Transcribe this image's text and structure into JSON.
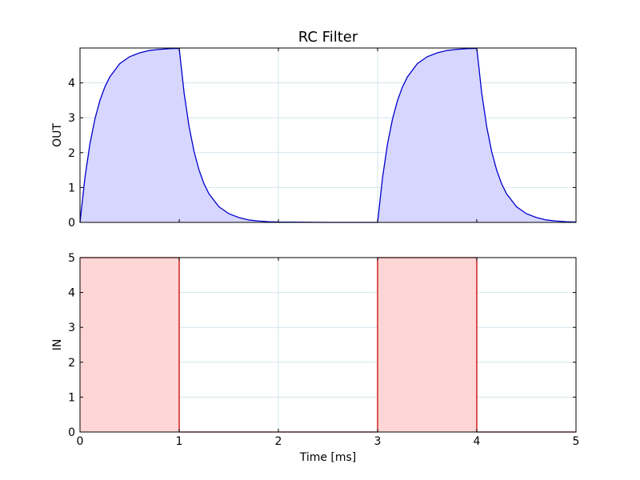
{
  "colors": {
    "out_line": "#0000cc",
    "out_fill": "#d6d6ff",
    "in_line": "#cc0000",
    "in_fill": "#ffd6d6",
    "grid": "#d4e6ee",
    "axes": "#000000"
  },
  "chart_data": [
    {
      "type": "area",
      "title": "RC Filter",
      "xlabel": "",
      "ylabel": "OUT",
      "xlim": [
        0,
        5
      ],
      "ylim": [
        0,
        5
      ],
      "grid": true,
      "xticks": [],
      "yticks": [
        "0",
        "1",
        "2",
        "3",
        "4"
      ],
      "series": [
        {
          "x": [
            0,
            0.05,
            0.1,
            0.15,
            0.2,
            0.25,
            0.3,
            0.4,
            0.5,
            0.6,
            0.7,
            0.8,
            0.9,
            1.0,
            1.05,
            1.1,
            1.15,
            1.2,
            1.25,
            1.3,
            1.4,
            1.5,
            1.6,
            1.7,
            1.8,
            1.9,
            2.0,
            2.5,
            3.0,
            3.05,
            3.1,
            3.15,
            3.2,
            3.25,
            3.3,
            3.4,
            3.5,
            3.6,
            3.7,
            3.8,
            3.9,
            4.0,
            4.05,
            4.1,
            4.15,
            4.2,
            4.25,
            4.3,
            4.4,
            4.5,
            4.6,
            4.7,
            4.8,
            4.9,
            5.0
          ],
          "y": [
            0,
            1.29,
            2.25,
            2.96,
            3.49,
            3.88,
            4.17,
            4.55,
            4.75,
            4.86,
            4.93,
            4.96,
            4.98,
            4.99,
            3.7,
            2.74,
            2.03,
            1.5,
            1.11,
            0.82,
            0.45,
            0.25,
            0.14,
            0.07,
            0.04,
            0.02,
            0.01,
            0.0,
            0.0,
            1.29,
            2.25,
            2.96,
            3.49,
            3.88,
            4.17,
            4.55,
            4.75,
            4.86,
            4.93,
            4.96,
            4.98,
            4.99,
            3.7,
            2.74,
            2.03,
            1.5,
            1.11,
            0.82,
            0.45,
            0.25,
            0.14,
            0.07,
            0.04,
            0.02,
            0.01
          ]
        }
      ]
    },
    {
      "type": "area",
      "title": "",
      "xlabel": "Time [ms]",
      "ylabel": "IN",
      "xlim": [
        0,
        5
      ],
      "ylim": [
        0,
        5
      ],
      "grid": true,
      "xticks": [
        "0",
        "1",
        "2",
        "3",
        "4",
        "5"
      ],
      "yticks": [
        "0",
        "1",
        "2",
        "3",
        "4",
        "5"
      ],
      "series": [
        {
          "x": [
            0,
            1.0,
            1.0,
            3.0,
            3.0,
            4.0,
            4.0,
            5.0
          ],
          "y": [
            5,
            5,
            0,
            0,
            5,
            5,
            0,
            0
          ]
        }
      ]
    }
  ]
}
